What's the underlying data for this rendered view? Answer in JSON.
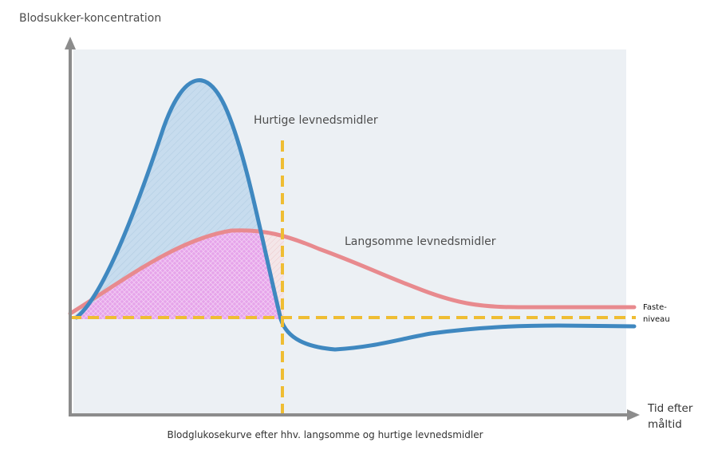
{
  "diagram": {
    "y_axis_label": "Blodsukker-koncentration",
    "x_axis_label_line1": "Tid efter",
    "x_axis_label_line2": "måltid",
    "fast_foods_label": "Hurtige levnedsmidler",
    "slow_foods_label": "Langsomme levnedsmidler",
    "fasting_label_line1": "Faste-",
    "fasting_label_line2": "niveau",
    "caption": "Blodglukosekurve efter hhv. langsomme og hurtige levnedsmidler"
  },
  "colors": {
    "plot_background": "#ecf0f4",
    "axis": "#8c8c8c",
    "fast_curve": "#3f88c0",
    "fast_fill": "#c6dced",
    "slow_curve": "#e88a8e",
    "overlap_fill": "#e7a9ec",
    "reference_lines": "#efbd33"
  }
}
